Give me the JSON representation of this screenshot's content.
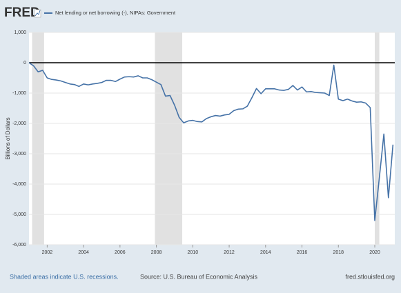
{
  "chart_data": {
    "type": "line",
    "logo": "FRED",
    "ylabel": "Billions of Dollars",
    "footer_left": "Shaded areas indicate U.S. recessions.",
    "source": "Source: U.S. Bureau of Economic Analysis",
    "footer_right": "fred.stlouisfed.org",
    "x": [
      2001,
      2001.25,
      2001.5,
      2001.75,
      2002,
      2002.25,
      2002.5,
      2002.75,
      2003,
      2003.25,
      2003.5,
      2003.75,
      2004,
      2004.25,
      2004.5,
      2004.75,
      2005,
      2005.25,
      2005.5,
      2005.75,
      2006,
      2006.25,
      2006.5,
      2006.75,
      2007,
      2007.25,
      2007.5,
      2007.75,
      2008,
      2008.25,
      2008.5,
      2008.75,
      2009,
      2009.25,
      2009.5,
      2009.75,
      2010,
      2010.25,
      2010.5,
      2010.75,
      2011,
      2011.25,
      2011.5,
      2011.75,
      2012,
      2012.25,
      2012.5,
      2012.75,
      2013,
      2013.25,
      2013.5,
      2013.75,
      2014,
      2014.25,
      2014.5,
      2014.75,
      2015,
      2015.25,
      2015.5,
      2015.75,
      2016,
      2016.25,
      2016.5,
      2016.75,
      2017,
      2017.25,
      2017.5,
      2017.75,
      2018,
      2018.25,
      2018.5,
      2018.75,
      2019,
      2019.25,
      2019.5,
      2019.75,
      2020,
      2020.25,
      2020.5,
      2020.75,
      2021
    ],
    "series": [
      {
        "name": "Net lending or net borrowing (-), NIPAs: Government",
        "color": "#4572a7",
        "values": [
          0,
          -100,
          -300,
          -250,
          -500,
          -550,
          -570,
          -600,
          -650,
          -700,
          -720,
          -780,
          -700,
          -730,
          -700,
          -680,
          -650,
          -580,
          -580,
          -620,
          -540,
          -470,
          -460,
          -470,
          -430,
          -500,
          -500,
          -560,
          -640,
          -720,
          -1100,
          -1080,
          -1400,
          -1800,
          -1980,
          -1920,
          -1900,
          -1940,
          -1950,
          -1840,
          -1780,
          -1740,
          -1760,
          -1720,
          -1700,
          -1580,
          -1530,
          -1520,
          -1430,
          -1150,
          -850,
          -1020,
          -860,
          -860,
          -860,
          -900,
          -910,
          -880,
          -750,
          -900,
          -800,
          -960,
          -950,
          -980,
          -990,
          -1000,
          -1080,
          -80,
          -1200,
          -1250,
          -1200,
          -1260,
          -1300,
          -1290,
          -1330,
          -1480,
          -5200,
          -3800,
          -2350,
          -4450,
          -2700
        ]
      }
    ],
    "recessions": [
      [
        2001.17,
        2001.83
      ],
      [
        2007.92,
        2009.42
      ],
      [
        2020.0,
        2020.25
      ]
    ],
    "recession_color": "#e1e1e1",
    "xlim": [
      2001,
      2021.1
    ],
    "xticks": [
      2002,
      2004,
      2006,
      2008,
      2010,
      2012,
      2014,
      2016,
      2018,
      2020
    ],
    "ylim": [
      -6000,
      1000
    ],
    "yticks": [
      {
        "value": -6000,
        "label": "-6,000"
      },
      {
        "value": -5000,
        "label": "-5,000"
      },
      {
        "value": -4000,
        "label": "-4,000"
      },
      {
        "value": -3000,
        "label": "-3,000"
      },
      {
        "value": -2000,
        "label": "-2,000"
      },
      {
        "value": -1000,
        "label": "-1,000"
      },
      0,
      {
        "value": 1000,
        "label": "1,000"
      }
    ],
    "grid": true,
    "zero_line": true
  }
}
